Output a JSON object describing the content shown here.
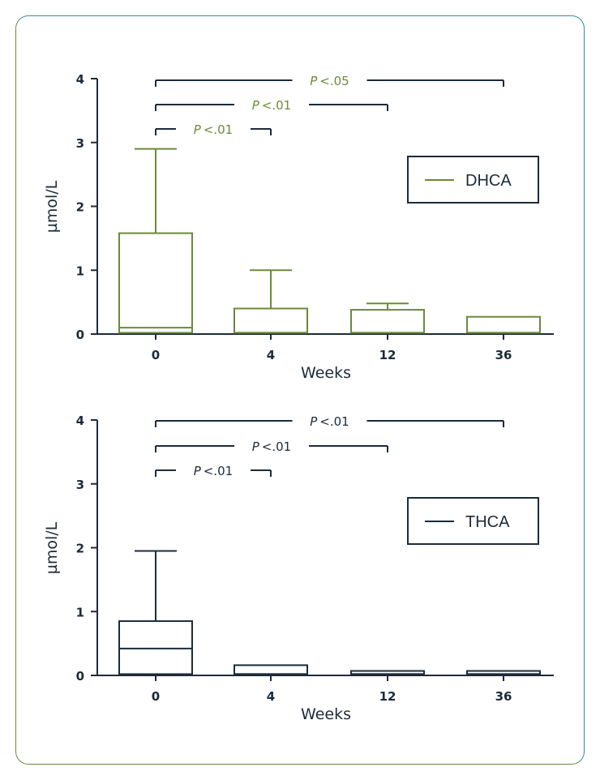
{
  "chart_data": [
    {
      "type": "box",
      "color": "#6b8a3a",
      "significance_color": "#6b8a3a",
      "xlabel": "Weeks",
      "ylabel": "µmol/L",
      "ylim": [
        0,
        4
      ],
      "yticks": [
        "0",
        "1",
        "2",
        "3",
        "4"
      ],
      "categories": [
        "0",
        "4",
        "12",
        "36"
      ],
      "legend": {
        "label": "DHCA",
        "position": "right"
      },
      "boxes": [
        {
          "category": "0",
          "min": 0.02,
          "q1": 0.02,
          "median": 0.1,
          "q3": 1.58,
          "max": 2.9
        },
        {
          "category": "4",
          "min": 0.02,
          "q1": 0.02,
          "median": 0.02,
          "q3": 0.4,
          "max": 1.0
        },
        {
          "category": "12",
          "min": 0.02,
          "q1": 0.02,
          "median": 0.02,
          "q3": 0.38,
          "max": 0.48
        },
        {
          "category": "36",
          "min": 0.02,
          "q1": 0.02,
          "median": 0.02,
          "q3": 0.27,
          "max": 0.27
        }
      ],
      "significance": [
        {
          "from": "0",
          "to": "36",
          "label": "P<.05",
          "p_symbol": "P",
          "p_rest": "<.05"
        },
        {
          "from": "0",
          "to": "12",
          "label": "P<.01",
          "p_symbol": "P",
          "p_rest": "<.01"
        },
        {
          "from": "0",
          "to": "4",
          "label": "P<.01",
          "p_symbol": "P",
          "p_rest": "<.01"
        }
      ]
    },
    {
      "type": "box",
      "color": "#1c2b3b",
      "significance_color": "#1c2b3b",
      "xlabel": "Weeks",
      "ylabel": "µmol/L",
      "ylim": [
        0,
        4
      ],
      "yticks": [
        "0",
        "1",
        "2",
        "3",
        "4"
      ],
      "categories": [
        "0",
        "4",
        "12",
        "36"
      ],
      "legend": {
        "label": "THCA",
        "position": "right"
      },
      "boxes": [
        {
          "category": "0",
          "min": 0.02,
          "q1": 0.02,
          "median": 0.42,
          "q3": 0.85,
          "max": 1.95
        },
        {
          "category": "4",
          "min": 0.02,
          "q1": 0.02,
          "median": 0.02,
          "q3": 0.16,
          "max": 0.16
        },
        {
          "category": "12",
          "min": 0.02,
          "q1": 0.02,
          "median": 0.02,
          "q3": 0.07,
          "max": 0.07
        },
        {
          "category": "36",
          "min": 0.02,
          "q1": 0.02,
          "median": 0.02,
          "q3": 0.07,
          "max": 0.07
        }
      ],
      "significance": [
        {
          "from": "0",
          "to": "36",
          "label": "P<.01",
          "p_symbol": "P",
          "p_rest": "<.01"
        },
        {
          "from": "0",
          "to": "12",
          "label": "P<.01",
          "p_symbol": "P",
          "p_rest": "<.01"
        },
        {
          "from": "0",
          "to": "4",
          "label": "P<.01",
          "p_symbol": "P",
          "p_rest": "<.01"
        }
      ]
    }
  ]
}
